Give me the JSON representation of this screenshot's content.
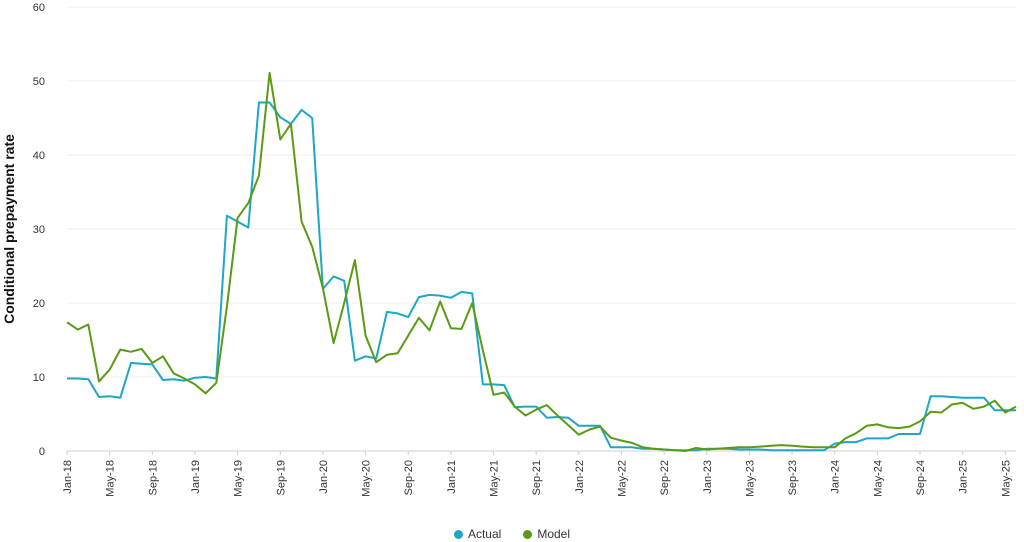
{
  "chart_data": {
    "type": "line",
    "ylabel": "Conditional prepayment rate",
    "xlabel": "",
    "ylim": [
      0,
      60
    ],
    "yticks": [
      0,
      10,
      20,
      30,
      40,
      50,
      60
    ],
    "grid": "horizontal",
    "legend_position": "bottom-center",
    "x_tick_labels": [
      "Jan-18",
      "May-18",
      "Sep-18",
      "Jan-19",
      "May-19",
      "Sep-19",
      "Jan-20",
      "May-20",
      "Sep-20",
      "Jan-21",
      "May-21",
      "Sep-21",
      "Jan-22",
      "May-22",
      "Sep-22",
      "Jan-23",
      "May-23",
      "Sep-23",
      "Jan-24",
      "May-24",
      "Sep-24",
      "Jan-25",
      "May-25"
    ],
    "x_start": "Jan-18",
    "x_end": "May-25",
    "series": [
      {
        "name": "Actual",
        "color": "#1ea7c5",
        "values": [
          9.8,
          9.8,
          9.7,
          7.3,
          7.4,
          7.2,
          11.9,
          11.8,
          11.7,
          9.6,
          9.7,
          9.5,
          9.9,
          10.0,
          9.8,
          31.8,
          31.0,
          30.2,
          47.1,
          47.1,
          45.1,
          44.2,
          46.1,
          45.0,
          21.9,
          23.6,
          23.0,
          12.2,
          12.8,
          12.5,
          18.8,
          18.6,
          18.1,
          20.8,
          21.1,
          21.0,
          20.7,
          21.5,
          21.3,
          9.0,
          9.0,
          8.9,
          5.9,
          6.0,
          6.0,
          4.5,
          4.6,
          4.5,
          3.4,
          3.4,
          3.4,
          0.5,
          0.5,
          0.5,
          0.3,
          0.3,
          0.2,
          0.1,
          0.1,
          0.1,
          0.3,
          0.3,
          0.3,
          0.2,
          0.2,
          0.2,
          0.1,
          0.1,
          0.1,
          0.1,
          0.1,
          0.1,
          1.0,
          1.2,
          1.2,
          1.7,
          1.7,
          1.7,
          2.3,
          2.3,
          2.3,
          7.4,
          7.4,
          7.3,
          7.2,
          7.2,
          7.2,
          5.5,
          5.5,
          5.5
        ]
      },
      {
        "name": "Model",
        "color": "#5b9a14",
        "values": [
          17.4,
          16.4,
          17.1,
          9.4,
          11.0,
          13.7,
          13.4,
          13.8,
          11.9,
          12.8,
          10.5,
          9.8,
          9.0,
          7.8,
          9.2,
          19.5,
          31.5,
          33.5,
          37.2,
          51.1,
          42.1,
          44.2,
          31.0,
          27.6,
          22.0,
          14.6,
          20.0,
          25.8,
          15.6,
          12.0,
          13.0,
          13.2,
          15.6,
          18.0,
          16.3,
          20.2,
          16.6,
          16.5,
          20.0,
          13.6,
          7.6,
          7.9,
          6.0,
          4.8,
          5.6,
          6.2,
          4.8,
          3.5,
          2.2,
          2.9,
          3.3,
          1.8,
          1.4,
          1.1,
          0.5,
          0.3,
          0.2,
          0.1,
          0.0,
          0.4,
          0.2,
          0.3,
          0.4,
          0.5,
          0.5,
          0.6,
          0.7,
          0.8,
          0.7,
          0.6,
          0.5,
          0.5,
          0.5,
          1.7,
          2.4,
          3.4,
          3.6,
          3.2,
          3.1,
          3.3,
          4.0,
          5.3,
          5.2,
          6.3,
          6.5,
          5.7,
          6.0,
          6.8,
          5.2,
          6.0
        ]
      }
    ]
  }
}
